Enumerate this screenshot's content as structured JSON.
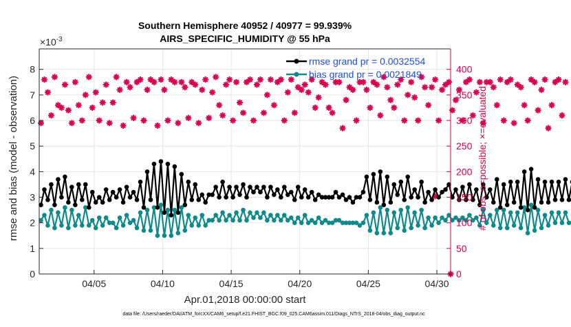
{
  "chart_data": {
    "type": "line",
    "title_line1": "Southern Hemisphere 40952 / 40977 = 99.939%",
    "title_line2": "AIRS_SPECIFIC_HUMIDITY @ 55 hPa",
    "exponent_label": "×10",
    "exponent_power": "-3",
    "xlabel": "Apr.01,2018 00:00:00 start",
    "ylabel_left": "rmse and bias (model - observation)",
    "ylabel_right": "# of obs: o=possible; ×=evaluated",
    "x_range_days": [
      1,
      31
    ],
    "ylim_left": [
      0,
      8.8
    ],
    "ylim_right": [
      0,
      440
    ],
    "x_ticks": [
      {
        "day": 5,
        "label": "04/05"
      },
      {
        "day": 10,
        "label": "04/10"
      },
      {
        "day": 15,
        "label": "04/15"
      },
      {
        "day": 20,
        "label": "04/20"
      },
      {
        "day": 25,
        "label": "04/25"
      },
      {
        "day": 30,
        "label": "04/30"
      }
    ],
    "y_ticks_left": [
      {
        "value": 0,
        "label": "0"
      },
      {
        "value": 1,
        "label": "1"
      },
      {
        "value": 2,
        "label": "2"
      },
      {
        "value": 3,
        "label": "3"
      },
      {
        "value": 4,
        "label": "4"
      },
      {
        "value": 5,
        "label": "5"
      },
      {
        "value": 6,
        "label": "6"
      },
      {
        "value": 7,
        "label": "7"
      },
      {
        "value": 8,
        "label": "8"
      }
    ],
    "y_ticks_right": [
      {
        "value": 0,
        "label": "0"
      },
      {
        "value": 50,
        "label": "50"
      },
      {
        "value": 100,
        "label": "100"
      },
      {
        "value": 150,
        "label": "150"
      },
      {
        "value": 200,
        "label": "200"
      },
      {
        "value": 250,
        "label": "250"
      },
      {
        "value": 300,
        "label": "300"
      },
      {
        "value": 350,
        "label": "350"
      },
      {
        "value": 400,
        "label": "400"
      }
    ],
    "legend": [
      {
        "label": "rmse grand pr = 0.0032554",
        "color": "#000000"
      },
      {
        "label": "bias grand pr = 0.0021849",
        "color": "#0f8a8a"
      }
    ],
    "colors": {
      "rmse": "#000000",
      "bias": "#0f8a8a",
      "obs": "#d6004f",
      "grid": "#e6e6e6",
      "axis": "#262626"
    },
    "samples_per_day": 4,
    "rmse_series": [
      2.7,
      3.3,
      2.9,
      3.5,
      2.7,
      3.7,
      3.0,
      3.8,
      2.8,
      3.4,
      2.7,
      3.5,
      2.9,
      3.5,
      2.6,
      3.2,
      2.8,
      3.0,
      2.8,
      3.3,
      2.9,
      3.2,
      3.0,
      3.3,
      2.8,
      3.4,
      3.0,
      3.2,
      2.9,
      3.6,
      2.6,
      4.0,
      2.9,
      4.3,
      2.6,
      4.4,
      2.4,
      4.3,
      2.3,
      4.2,
      2.4,
      3.9,
      2.7,
      3.6,
      2.9,
      3.5,
      2.9,
      3.1,
      2.8,
      3.1,
      3.1,
      3.4,
      3.0,
      3.6,
      3.0,
      3.4,
      3.0,
      3.4,
      3.1,
      3.5,
      3.0,
      3.4,
      3.2,
      3.4,
      3.2,
      3.4,
      3.0,
      3.4,
      3.1,
      3.3,
      3.0,
      3.4,
      3.1,
      3.2,
      2.9,
      3.4,
      3.0,
      3.3,
      3.0,
      3.2,
      2.9,
      3.1,
      3.0,
      3.0,
      3.0,
      3.0,
      3.2,
      3.0,
      3.1,
      2.9,
      3.0,
      2.8,
      3.0,
      3.0,
      3.2,
      3.8,
      2.9,
      3.9,
      2.8,
      4.0,
      2.7,
      3.8,
      2.8,
      3.5,
      3.1,
      3.6,
      2.9,
      3.8,
      3.0,
      3.3,
      3.0,
      3.6,
      2.8,
      3.2,
      2.9,
      3.3,
      3.0,
      3.2,
      3.3,
      3.5,
      3.0,
      3.3,
      2.9,
      3.4,
      2.9,
      3.5,
      2.9,
      3.3,
      2.7,
      3.5,
      3.0,
      3.3,
      2.8,
      3.7,
      2.6,
      3.5,
      2.7,
      3.6,
      2.8,
      3.6,
      2.6,
      4.0,
      2.5,
      4.1,
      2.6,
      3.7,
      2.8,
      3.6,
      2.8,
      3.6,
      2.9,
      3.6,
      2.9,
      3.7,
      2.9,
      3.6,
      2.9,
      3.6
    ],
    "bias_series": [
      2.1,
      2.3,
      1.9,
      2.5,
      1.8,
      2.4,
      1.9,
      2.6,
      1.8,
      2.5,
      1.9,
      2.3,
      1.9,
      2.6,
      1.9,
      2.1,
      1.8,
      2.2,
      1.9,
      2.2,
      2.0,
      2.0,
      1.8,
      2.2,
      1.9,
      2.3,
      2.0,
      2.1,
      1.8,
      2.4,
      1.7,
      2.5,
      1.7,
      2.6,
      1.5,
      2.7,
      1.5,
      2.5,
      1.5,
      2.5,
      1.6,
      2.6,
      1.7,
      2.3,
      1.9,
      2.2,
      1.9,
      2.3,
      1.9,
      2.1,
      2.1,
      2.3,
      2.1,
      2.4,
      2.1,
      2.3,
      2.1,
      2.4,
      2.1,
      2.5,
      2.1,
      2.4,
      2.2,
      2.4,
      2.2,
      2.4,
      2.1,
      2.3,
      2.1,
      2.3,
      2.1,
      2.3,
      2.1,
      2.2,
      2.0,
      2.2,
      2.0,
      2.3,
      2.0,
      2.1,
      2.0,
      2.2,
      2.0,
      2.1,
      2.0,
      2.0,
      2.1,
      2.1,
      2.0,
      2.0,
      2.0,
      2.0,
      2.0,
      1.9,
      2.0,
      2.3,
      1.7,
      2.4,
      1.6,
      2.6,
      1.6,
      2.5,
      1.6,
      2.4,
      1.8,
      2.5,
      1.7,
      2.6,
      1.8,
      2.4,
      1.9,
      2.5,
      1.8,
      2.2,
      1.9,
      2.2,
      2.0,
      2.2,
      2.1,
      2.3,
      2.1,
      2.2,
      2.1,
      2.2,
      2.1,
      2.3,
      2.1,
      2.2,
      1.9,
      2.5,
      2.0,
      2.3,
      1.9,
      2.5,
      1.8,
      2.5,
      1.8,
      2.4,
      1.9,
      2.4,
      1.8,
      2.6,
      1.6,
      2.7,
      1.7,
      2.5,
      1.8,
      2.3,
      1.9,
      2.4,
      2.0,
      2.4,
      2.0,
      2.4,
      2.0,
      2.0,
      2.0,
      2.0
    ],
    "obs_series": [
      295,
      380,
      355,
      310,
      385,
      330,
      325,
      370,
      320,
      295,
      375,
      330,
      300,
      350,
      385,
      325,
      355,
      300,
      335,
      370,
      295,
      335,
      385,
      360,
      290,
      375,
      365,
      305,
      375,
      380,
      300,
      360,
      380,
      375,
      290,
      380,
      360,
      300,
      380,
      375,
      295,
      375,
      365,
      305,
      375,
      370,
      295,
      360,
      380,
      305,
      355,
      385,
      330,
      310,
      370,
      380,
      300,
      375,
      335,
      315,
      375,
      380,
      300,
      370,
      380,
      315,
      350,
      380,
      330,
      375,
      380,
      300,
      355,
      380,
      315,
      365,
      360,
      370,
      355,
      380,
      325,
      345,
      375,
      370,
      325,
      315,
      375,
      375,
      285,
      340,
      365,
      360,
      300,
      375,
      375,
      360,
      325,
      375,
      370,
      310,
      385,
      365,
      340,
      325,
      370,
      380,
      300,
      350,
      375,
      345,
      300,
      385,
      365,
      330,
      365,
      380,
      300,
      360,
      370,
      375,
      320,
      340,
      360,
      300,
      375,
      380,
      310,
      355,
      375,
      295,
      375,
      375,
      365,
      330,
      380,
      300,
      375,
      380,
      295,
      370,
      365,
      330,
      300,
      380,
      375,
      320,
      360,
      380,
      285,
      330,
      375,
      380,
      310,
      375
    ],
    "highlight_obs": {
      "day_index": 115,
      "value": 152
    }
  },
  "footer": "data file: /Users/raeder/DAI/ATM_forcXX/CAM6_setup/f.e21.FHIST_BGC.f09_025.CAM6assim.011/Diags_NTrS_2018-04/obs_diag_output.nc"
}
